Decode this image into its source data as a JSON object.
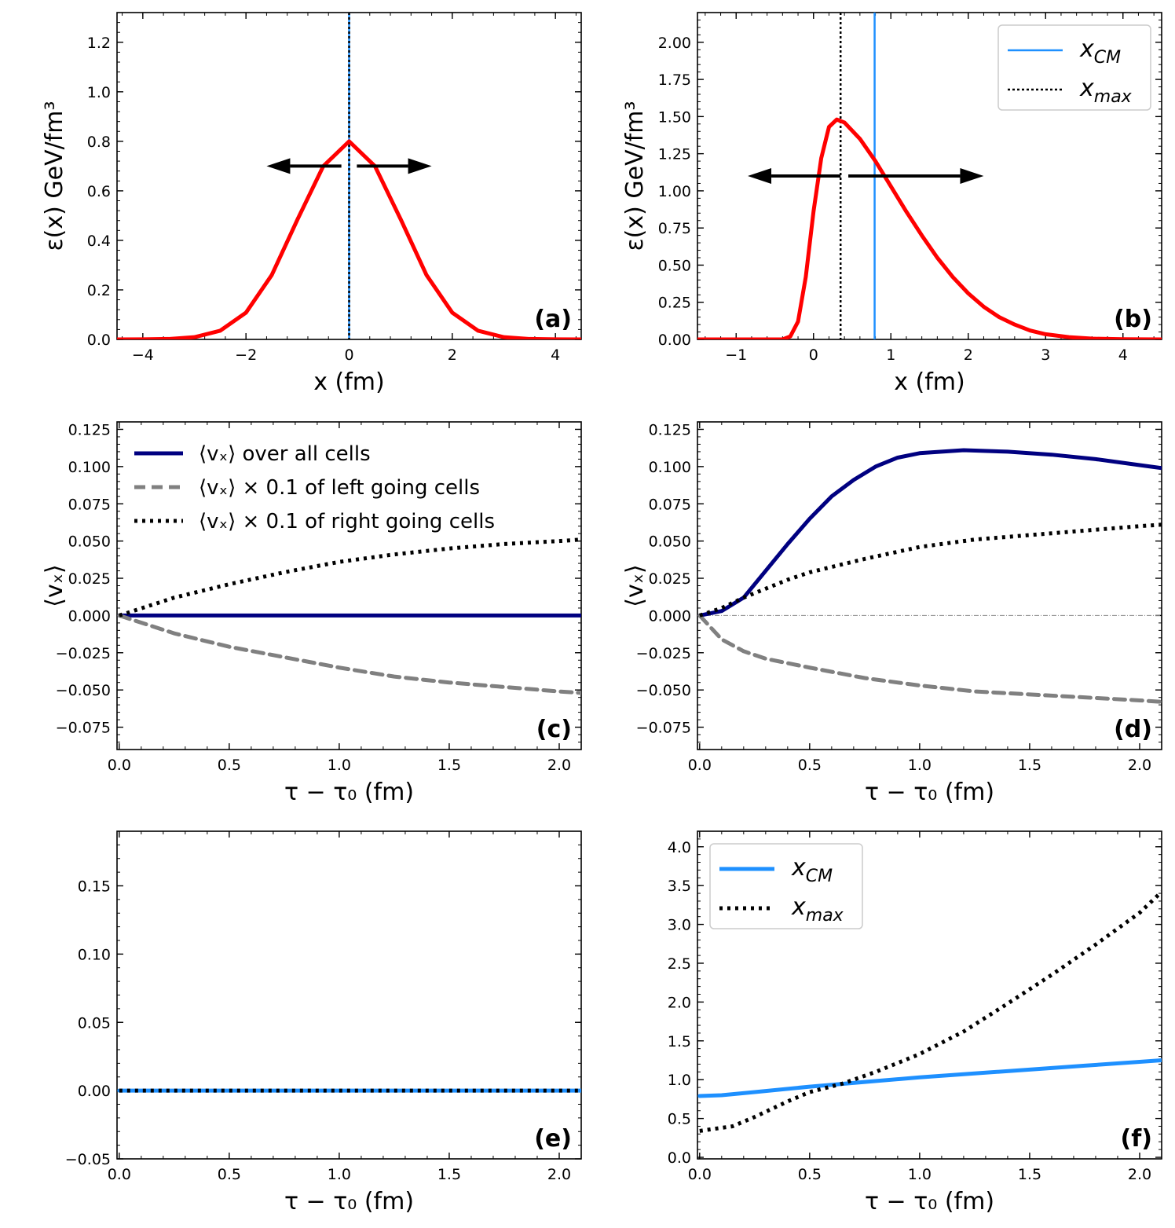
{
  "chart_data": [
    {
      "id": "a",
      "type": "line",
      "panel_label": "(a)",
      "xlabel": "x (fm)",
      "ylabel": "ε(x) GeV/fm³",
      "xlim": [
        -4.5,
        4.5
      ],
      "ylim": [
        0,
        1.32
      ],
      "xticks": [
        -4,
        -2,
        0,
        2,
        4
      ],
      "xtick_labels": [
        "−4",
        "−2",
        "0",
        "2",
        "4"
      ],
      "yticks": [
        0,
        0.2,
        0.4,
        0.6,
        0.8,
        1.0,
        1.2
      ],
      "ytick_labels": [
        "0.0",
        "0.2",
        "0.4",
        "0.6",
        "0.8",
        "1.0",
        "1.2"
      ],
      "series": [
        {
          "name": "ε(x)",
          "color": "#ff0000",
          "style": "solid",
          "x": [
            -4.5,
            -4,
            -3.5,
            -3,
            -2.5,
            -2,
            -1.5,
            -1,
            -0.5,
            0,
            0.5,
            1,
            1.5,
            2,
            2.5,
            3,
            3.5,
            4,
            4.5
          ],
          "y": [
            0,
            0.0003,
            0.0018,
            0.009,
            0.035,
            0.108,
            0.26,
            0.485,
            0.7,
            0.8,
            0.7,
            0.485,
            0.26,
            0.108,
            0.035,
            0.009,
            0.0018,
            0.0003,
            0
          ]
        }
      ],
      "vlines": [
        {
          "name": "x_CM",
          "x": 0,
          "color": "#1e90ff",
          "style": "solid"
        },
        {
          "name": "x_max",
          "x": 0,
          "color": "#000000",
          "style": "dotted"
        }
      ],
      "arrows": [
        {
          "direction": "left",
          "from": -0.15,
          "to": -1.6,
          "y": 0.7
        },
        {
          "direction": "right",
          "from": 0.15,
          "to": 1.6,
          "y": 0.7
        }
      ]
    },
    {
      "id": "b",
      "type": "line",
      "panel_label": "(b)",
      "xlabel": "x (fm)",
      "ylabel": "ε(x) GeV/fm³",
      "xlim": [
        -1.5,
        4.5
      ],
      "ylim": [
        0,
        2.2
      ],
      "xticks": [
        -1,
        0,
        1,
        2,
        3,
        4
      ],
      "xtick_labels": [
        "−1",
        "0",
        "1",
        "2",
        "3",
        "4"
      ],
      "yticks": [
        0,
        0.25,
        0.5,
        0.75,
        1.0,
        1.25,
        1.5,
        1.75,
        2.0
      ],
      "ytick_labels": [
        "0.00",
        "0.25",
        "0.50",
        "0.75",
        "1.00",
        "1.25",
        "1.50",
        "1.75",
        "2.00"
      ],
      "legend": [
        "x_CM",
        "x_max"
      ],
      "legend_position": "top-right",
      "series": [
        {
          "name": "ε(x)",
          "color": "#ff0000",
          "style": "solid",
          "x": [
            -1.5,
            -0.4,
            -0.3,
            -0.2,
            -0.1,
            0,
            0.1,
            0.2,
            0.3,
            0.4,
            0.6,
            0.8,
            1,
            1.2,
            1.4,
            1.6,
            1.8,
            2,
            2.2,
            2.4,
            2.6,
            2.8,
            3,
            3.3,
            3.6,
            4,
            4.5
          ],
          "y": [
            0,
            0,
            0.02,
            0.12,
            0.42,
            0.86,
            1.22,
            1.43,
            1.48,
            1.46,
            1.35,
            1.2,
            1.03,
            0.86,
            0.7,
            0.55,
            0.42,
            0.31,
            0.22,
            0.15,
            0.1,
            0.06,
            0.035,
            0.015,
            0.005,
            0.001,
            0
          ]
        }
      ],
      "vlines": [
        {
          "name": "x_CM",
          "x": 0.79,
          "color": "#1e90ff",
          "style": "solid"
        },
        {
          "name": "x_max",
          "x": 0.35,
          "color": "#000000",
          "style": "dotted"
        }
      ],
      "arrows": [
        {
          "direction": "left",
          "from": 0.35,
          "to": -0.85,
          "y": 1.1
        },
        {
          "direction": "right",
          "from": 0.45,
          "to": 2.2,
          "y": 1.1
        }
      ]
    },
    {
      "id": "c",
      "type": "line",
      "panel_label": "(c)",
      "xlabel": "τ − τ₀ (fm)",
      "ylabel": "⟨vₓ⟩",
      "xlim": [
        -0.01,
        2.1
      ],
      "ylim": [
        -0.09,
        0.13
      ],
      "xticks": [
        0,
        0.5,
        1.0,
        1.5,
        2.0
      ],
      "xtick_labels": [
        "0.0",
        "0.5",
        "1.0",
        "1.5",
        "2.0"
      ],
      "yticks": [
        -0.075,
        -0.05,
        -0.025,
        0,
        0.025,
        0.05,
        0.075,
        0.1,
        0.125
      ],
      "ytick_labels": [
        "−0.075",
        "−0.050",
        "−0.025",
        "0.000",
        "0.025",
        "0.050",
        "0.075",
        "0.100",
        "0.125"
      ],
      "legend": [
        "⟨vₓ⟩ over all cells",
        "⟨vₓ⟩ × 0.1 of left going cells",
        "⟨vₓ⟩ × 0.1 of right going cells"
      ],
      "legend_position": "top-left",
      "series": [
        {
          "name": "⟨vₓ⟩ over all cells",
          "color": "#000080",
          "style": "solid",
          "x": [
            0,
            2.1
          ],
          "y": [
            0,
            0
          ]
        },
        {
          "name": "⟨vₓ⟩ × 0.1 of left going cells",
          "color": "#808080",
          "style": "dashed",
          "x": [
            0,
            0.25,
            0.5,
            0.75,
            1.0,
            1.25,
            1.5,
            1.75,
            2.0,
            2.1
          ],
          "y": [
            0,
            -0.012,
            -0.021,
            -0.028,
            -0.035,
            -0.041,
            -0.045,
            -0.048,
            -0.051,
            -0.052
          ]
        },
        {
          "name": "⟨vₓ⟩ × 0.1 of right going cells",
          "color": "#000000",
          "style": "dotted",
          "x": [
            0,
            0.25,
            0.5,
            0.75,
            1.0,
            1.25,
            1.5,
            1.75,
            2.0,
            2.1
          ],
          "y": [
            0,
            0.012,
            0.021,
            0.029,
            0.036,
            0.041,
            0.045,
            0.048,
            0.05,
            0.051
          ]
        }
      ]
    },
    {
      "id": "d",
      "type": "line",
      "panel_label": "(d)",
      "xlabel": "τ − τ₀ (fm)",
      "ylabel": "⟨vₓ⟩",
      "xlim": [
        -0.01,
        2.1
      ],
      "ylim": [
        -0.09,
        0.13
      ],
      "xticks": [
        0,
        0.5,
        1.0,
        1.5,
        2.0
      ],
      "xtick_labels": [
        "0.0",
        "0.5",
        "1.0",
        "1.5",
        "2.0"
      ],
      "yticks": [
        -0.075,
        -0.05,
        -0.025,
        0,
        0.025,
        0.05,
        0.075,
        0.1,
        0.125
      ],
      "ytick_labels": [
        "−0.075",
        "−0.050",
        "−0.025",
        "0.000",
        "0.025",
        "0.050",
        "0.075",
        "0.100",
        "0.125"
      ],
      "hline_zero": true,
      "series": [
        {
          "name": "⟨vₓ⟩ over all cells",
          "color": "#000080",
          "style": "solid",
          "x": [
            0,
            0.1,
            0.2,
            0.3,
            0.4,
            0.5,
            0.6,
            0.7,
            0.8,
            0.9,
            1.0,
            1.2,
            1.4,
            1.6,
            1.8,
            2.0,
            2.1
          ],
          "y": [
            0,
            0.003,
            0.012,
            0.03,
            0.048,
            0.065,
            0.08,
            0.091,
            0.1,
            0.106,
            0.109,
            0.111,
            0.11,
            0.108,
            0.105,
            0.101,
            0.099
          ]
        },
        {
          "name": "⟨vₓ⟩ × 0.1 of left going cells",
          "color": "#808080",
          "style": "dashed",
          "x": [
            0,
            0.1,
            0.2,
            0.3,
            0.4,
            0.5,
            0.75,
            1.0,
            1.25,
            1.5,
            1.75,
            2.0,
            2.1
          ],
          "y": [
            0,
            -0.016,
            -0.024,
            -0.029,
            -0.032,
            -0.035,
            -0.042,
            -0.047,
            -0.051,
            -0.053,
            -0.055,
            -0.057,
            -0.058
          ]
        },
        {
          "name": "⟨vₓ⟩ × 0.1 of right going cells",
          "color": "#000000",
          "style": "dotted",
          "x": [
            0,
            0.1,
            0.2,
            0.3,
            0.4,
            0.5,
            0.75,
            1.0,
            1.25,
            1.5,
            1.75,
            2.0,
            2.1
          ],
          "y": [
            0,
            0.005,
            0.012,
            0.018,
            0.024,
            0.029,
            0.038,
            0.046,
            0.051,
            0.054,
            0.057,
            0.06,
            0.061
          ]
        }
      ]
    },
    {
      "id": "e",
      "type": "line",
      "panel_label": "(e)",
      "xlabel": "τ − τ₀ (fm)",
      "ylabel": "",
      "xlim": [
        -0.01,
        2.1
      ],
      "ylim": [
        -0.05,
        0.19
      ],
      "xticks": [
        0,
        0.5,
        1.0,
        1.5,
        2.0
      ],
      "xtick_labels": [
        "0.0",
        "0.5",
        "1.0",
        "1.5",
        "2.0"
      ],
      "yticks": [
        -0.05,
        0,
        0.05,
        0.1,
        0.15
      ],
      "ytick_labels": [
        "−0.05",
        "0.00",
        "0.05",
        "0.10",
        "0.15"
      ],
      "series": [
        {
          "name": "x_CM",
          "color": "#1e90ff",
          "style": "solid",
          "x": [
            0,
            2.1
          ],
          "y": [
            0,
            0
          ]
        },
        {
          "name": "x_max",
          "color": "#000000",
          "style": "dotted",
          "x": [
            0,
            2.1
          ],
          "y": [
            0,
            0
          ]
        }
      ]
    },
    {
      "id": "f",
      "type": "line",
      "panel_label": "(f)",
      "xlabel": "τ − τ₀ (fm)",
      "ylabel": "",
      "xlim": [
        -0.01,
        2.1
      ],
      "ylim": [
        -0.02,
        4.2
      ],
      "xticks": [
        0,
        0.5,
        1.0,
        1.5,
        2.0
      ],
      "xtick_labels": [
        "0.0",
        "0.5",
        "1.0",
        "1.5",
        "2.0"
      ],
      "yticks": [
        0,
        0.5,
        1.0,
        1.5,
        2.0,
        2.5,
        3.0,
        3.5,
        4.0
      ],
      "ytick_labels": [
        "0.0",
        "0.5",
        "1.0",
        "1.5",
        "2.0",
        "2.5",
        "3.0",
        "3.5",
        "4.0"
      ],
      "legend": [
        "x_CM",
        "x_max"
      ],
      "legend_position": "top-left",
      "series": [
        {
          "name": "x_CM",
          "color": "#1e90ff",
          "style": "solid",
          "x": [
            0,
            0.1,
            0.25,
            0.5,
            0.75,
            1.0,
            1.25,
            1.5,
            1.75,
            2.0,
            2.1
          ],
          "y": [
            0.79,
            0.8,
            0.84,
            0.91,
            0.97,
            1.03,
            1.08,
            1.13,
            1.18,
            1.23,
            1.25
          ]
        },
        {
          "name": "x_max",
          "color": "#000000",
          "style": "dotted",
          "x": [
            0,
            0.15,
            0.25,
            0.4,
            0.5,
            0.65,
            0.8,
            1.0,
            1.2,
            1.4,
            1.6,
            1.8,
            2.0,
            2.1
          ],
          "y": [
            0.34,
            0.4,
            0.52,
            0.72,
            0.84,
            0.95,
            1.1,
            1.33,
            1.62,
            1.98,
            2.35,
            2.74,
            3.15,
            3.42
          ]
        }
      ]
    }
  ]
}
